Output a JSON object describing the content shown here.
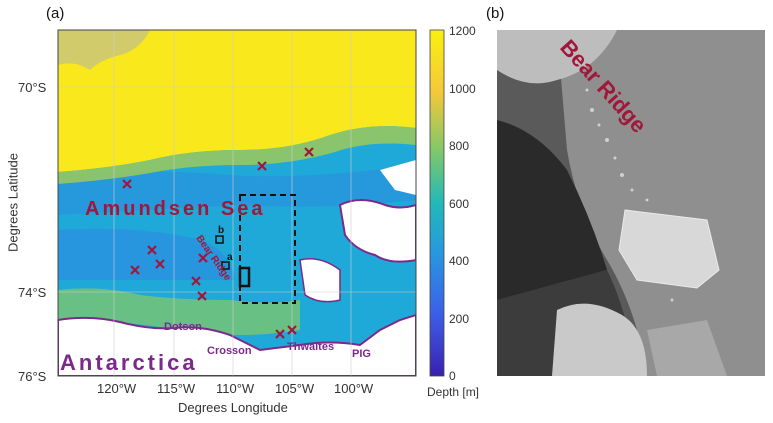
{
  "figure": {
    "panel_a_label": "(a)",
    "panel_b_label": "(b)"
  },
  "map": {
    "x_axis_title": "Degrees Longitude",
    "y_axis_title": "Degrees Latitude",
    "x_ticks": [
      "120°W",
      "115°W",
      "110°W",
      "105°W",
      "100°W"
    ],
    "y_ticks": [
      "70°S",
      "74°S",
      "76°S"
    ],
    "labels": {
      "sea": "Amundsen Sea",
      "continent": "Antarctica",
      "ridge": "Bear Ridge",
      "dotson": "Dotson",
      "crosson": "Crosson",
      "thwaites": "Thwaites",
      "pig": "PIG",
      "site_a": "a",
      "site_b": "b"
    },
    "colors": {
      "deep": "#3b2fd0",
      "shelf": "#1fb5c9",
      "shallow": "#ffe616",
      "text_red": "#a0173a",
      "text_purple": "#7b2a8a"
    }
  },
  "colorbar": {
    "title": "Depth [m]",
    "ticks": [
      "1200",
      "1000",
      "800",
      "600",
      "400",
      "200",
      "0"
    ]
  },
  "photo": {
    "caption": "Bear Ridge"
  }
}
